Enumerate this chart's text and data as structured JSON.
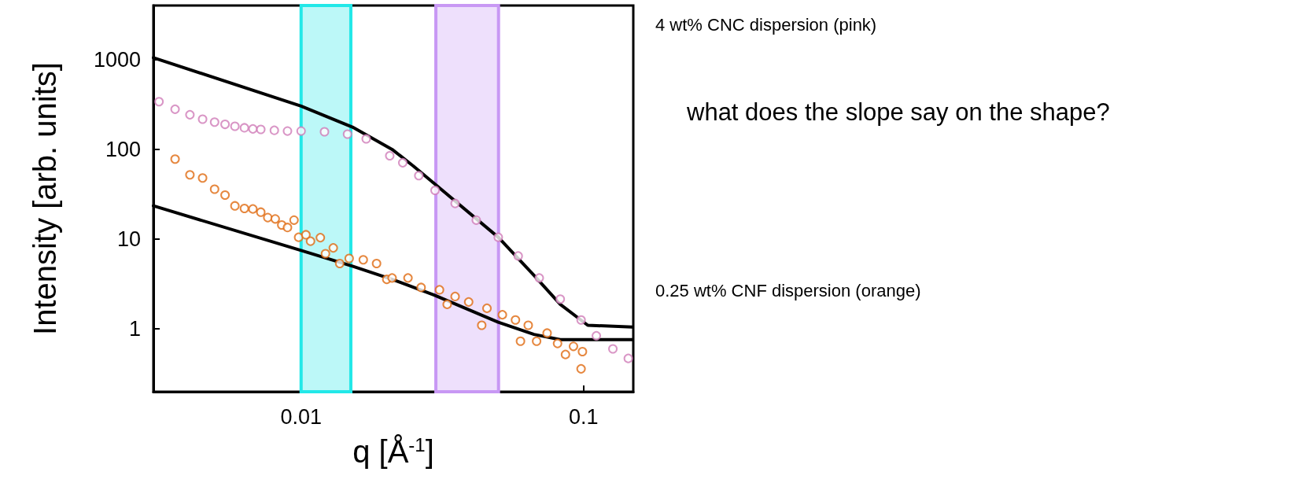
{
  "chart_data": {
    "type": "scatter",
    "xlabel": "q [Å$^{-1}$]",
    "ylabel": "Intensity [arb. units]",
    "log": "xy",
    "xlim": [
      0.003,
      0.15
    ],
    "ylim": [
      0.2,
      4000
    ],
    "xticks": [
      0.01,
      0.1
    ],
    "yticks": [
      1,
      10,
      100,
      1000
    ],
    "marker": "circle",
    "series": [
      {
        "color": "#d07cb8",
        "x": [
          0.00314,
          0.00358,
          0.00404,
          0.00448,
          0.00494,
          0.00538,
          0.00583,
          0.0063,
          0.00675,
          0.0072,
          0.00804,
          0.00895,
          0.01,
          0.0121,
          0.0146,
          0.017,
          0.0206,
          0.0229,
          0.0261,
          0.0298,
          0.0351,
          0.0417,
          0.0499,
          0.0587,
          0.0697,
          0.0827,
          0.098,
          0.111,
          0.127,
          0.144
        ],
        "values": [
          340,
          280,
          243,
          217,
          201,
          190,
          181,
          174,
          169,
          167,
          163,
          160,
          160,
          157,
          148,
          131,
          85,
          71,
          51,
          35,
          25,
          16.3,
          10.5,
          6.5,
          3.7,
          2.15,
          1.26,
          0.84,
          0.6,
          0.47
        ]
      },
      {
        "color": "#e06a10",
        "x": [
          0.00358,
          0.00404,
          0.00448,
          0.00494,
          0.00538,
          0.00583,
          0.0063,
          0.00675,
          0.0072,
          0.00762,
          0.0081,
          0.00854,
          0.00895,
          0.00944,
          0.0098,
          0.0104,
          0.0108,
          0.0117,
          0.0122,
          0.013,
          0.0137,
          0.0148,
          0.0166,
          0.0185,
          0.0201,
          0.021,
          0.0239,
          0.0266,
          0.0309,
          0.0329,
          0.0351,
          0.0392,
          0.0436,
          0.0455,
          0.0516,
          0.0574,
          0.0598,
          0.0637,
          0.0682,
          0.0743,
          0.0809,
          0.0863,
          0.0921,
          0.098,
          0.0991
        ],
        "values": [
          78,
          52,
          48,
          36,
          31,
          23.5,
          22,
          21.7,
          20,
          17.4,
          16.8,
          14.4,
          13.5,
          16.3,
          10.5,
          11.2,
          9.5,
          10.4,
          6.9,
          8,
          5.35,
          6.1,
          5.9,
          5.35,
          3.57,
          3.7,
          3.7,
          2.9,
          2.73,
          1.88,
          2.3,
          2,
          1.1,
          1.7,
          1.44,
          1.26,
          0.73,
          1.1,
          0.73,
          0.9,
          0.69,
          0.52,
          0.64,
          0.36,
          0.56
        ]
      },
      {
        "type": "line",
        "color": "#000000",
        "marker": "none",
        "x": [
          0.003,
          0.01,
          0.0152,
          0.021,
          0.025,
          0.0296,
          0.0499,
          0.0668,
          0.0827,
          0.1035,
          0.149
        ],
        "values": [
          1050,
          303,
          177,
          100,
          65,
          41.7,
          10.5,
          3.95,
          1.88,
          1.1,
          1.05
        ]
      },
      {
        "type": "line",
        "color": "#000000",
        "marker": "none",
        "x": [
          0.003,
          0.01,
          0.0152,
          0.021,
          0.0296,
          0.0499,
          0.0668,
          0.0827,
          0.149
        ],
        "values": [
          23.5,
          7.5,
          5,
          3.57,
          2.38,
          1.19,
          0.87,
          0.76,
          0.76
        ]
      }
    ],
    "bands": [
      {
        "axis": "x",
        "from": 0.01,
        "to": 0.015,
        "color": "#22e8e8"
      },
      {
        "axis": "x",
        "from": 0.03,
        "to": 0.05,
        "color": "#c898f4"
      }
    ],
    "annotations": [
      "4 wt% CNC dispersion (pink)",
      "what does the slope say on the shape?",
      "0.25 wt% CNF dispersion (orange)"
    ]
  }
}
